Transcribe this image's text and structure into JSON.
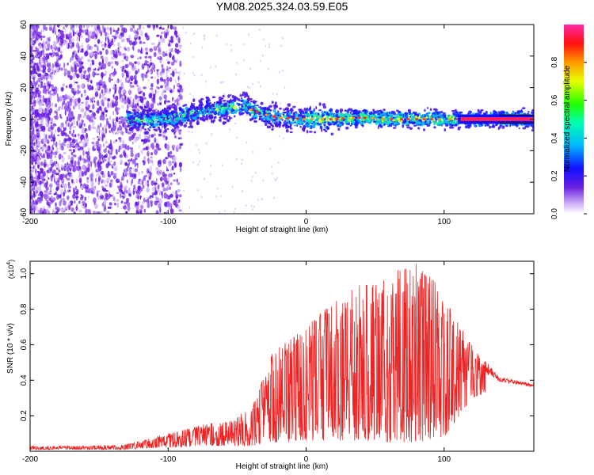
{
  "figure_title": "YM08.2025.324.03.59.E05",
  "chart_data": [
    {
      "type": "heatmap",
      "panel": "spectrogram",
      "xlabel": "Height of straight line (km)",
      "ylabel": "Frequency (Hz)",
      "xlim": [
        -200,
        165
      ],
      "ylim": [
        -60,
        60
      ],
      "xticks": [
        -200,
        -100,
        0,
        100
      ],
      "xtick_labels": [
        "-200",
        "-100",
        "0",
        "100"
      ],
      "yticks": [
        -60,
        -40,
        -20,
        0,
        20,
        40,
        60
      ],
      "ytick_labels": [
        "-60",
        "-40",
        "-20",
        "0",
        "20",
        "40",
        "60"
      ],
      "ridge_frequency_hz": {
        "x": [
          -130,
          -110,
          -90,
          -70,
          -50,
          -45,
          -40,
          -30,
          -20,
          0,
          20,
          40,
          60,
          80,
          100,
          120,
          140,
          165
        ],
        "y": [
          0,
          -1,
          2,
          6,
          8,
          10,
          6,
          3,
          1,
          0,
          0,
          1,
          0,
          0,
          0,
          0,
          0,
          0
        ]
      },
      "colorbar": {
        "label": "Normalized spectral amplitude",
        "range": [
          0,
          1
        ],
        "ticks": [
          0.0,
          0.2,
          0.4,
          0.6,
          0.8
        ],
        "tick_labels": [
          "0.0",
          "0.2",
          "0.4",
          "0.6",
          "0.8"
        ]
      }
    },
    {
      "type": "line",
      "panel": "snr",
      "xlabel": "Height of straight line (km)",
      "ylabel": "SNR (10 * v/v)",
      "y_multiplier_label": "(x10",
      "y_multiplier_exp": "4",
      "y_multiplier_close": ")",
      "xlim": [
        -200,
        165
      ],
      "ylim": [
        0,
        1.07
      ],
      "xticks": [
        -200,
        -100,
        0,
        100
      ],
      "xtick_labels": [
        "-200",
        "-100",
        "0",
        "100"
      ],
      "yticks": [
        0.2,
        0.4,
        0.6,
        0.8,
        1.0
      ],
      "ytick_labels": [
        "0.2",
        "0.4",
        "0.6",
        "0.8",
        "1.0"
      ],
      "series": [
        {
          "name": "SNR",
          "color": "#ee2222",
          "envelope_x": [
            -200,
            -160,
            -130,
            -110,
            -90,
            -70,
            -55,
            -40,
            -30,
            -25,
            -15,
            0,
            20,
            40,
            60,
            80,
            100,
            120,
            140,
            165
          ],
          "envelope_max": [
            0.03,
            0.03,
            0.04,
            0.08,
            0.12,
            0.16,
            0.17,
            0.25,
            0.45,
            0.55,
            0.62,
            0.7,
            0.85,
            0.95,
            1.0,
            1.07,
            0.9,
            0.6,
            0.42,
            0.38
          ],
          "envelope_min": [
            0.01,
            0.01,
            0.01,
            0.02,
            0.02,
            0.03,
            0.03,
            0.03,
            0.04,
            0.05,
            0.05,
            0.06,
            0.06,
            0.06,
            0.05,
            0.05,
            0.08,
            0.3,
            0.35,
            0.33
          ]
        }
      ]
    }
  ]
}
